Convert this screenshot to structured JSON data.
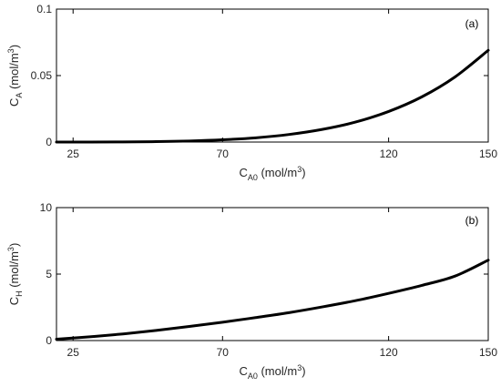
{
  "chart_data": [
    {
      "type": "line",
      "panel_label": "(a)",
      "xlabel": {
        "main": "C",
        "sub": "A0",
        "unit": " (mol/m",
        "sup": "3",
        "close": ")"
      },
      "ylabel": {
        "main": "C",
        "sub": "A",
        "unit": " (mol/m",
        "sup": "3",
        "close": ")"
      },
      "xlim": [
        20,
        150
      ],
      "ylim": [
        0,
        0.1
      ],
      "xticks": [
        25,
        70,
        120,
        150
      ],
      "xtick_labels": [
        "25",
        "70",
        "120",
        "150"
      ],
      "yticks": [
        0,
        0.05,
        0.1
      ],
      "ytick_labels": [
        "0",
        "0.05",
        "0.1"
      ],
      "grid": false,
      "series": [
        {
          "x": [
            20,
            30,
            40,
            50,
            60,
            70,
            80,
            90,
            100,
            110,
            120,
            130,
            140,
            150
          ],
          "y": [
            0.0,
            0.0,
            0.0001,
            0.0003,
            0.0008,
            0.0017,
            0.0032,
            0.0057,
            0.0095,
            0.015,
            0.023,
            0.034,
            0.049,
            0.069
          ]
        }
      ]
    },
    {
      "type": "line",
      "panel_label": "(b)",
      "xlabel": {
        "main": "C",
        "sub": "A0",
        "unit": " (mol/m",
        "sup": "3",
        "close": ")"
      },
      "ylabel": {
        "main": "C",
        "sub": "H",
        "unit": " (mol/m",
        "sup": "3",
        "close": ")"
      },
      "xlim": [
        20,
        150
      ],
      "ylim": [
        0,
        10
      ],
      "xticks": [
        25,
        70,
        120,
        150
      ],
      "xtick_labels": [
        "25",
        "70",
        "120",
        "150"
      ],
      "yticks": [
        0,
        5,
        10
      ],
      "ytick_labels": [
        "0",
        "5",
        "10"
      ],
      "grid": false,
      "series": [
        {
          "x": [
            20,
            30,
            40,
            50,
            60,
            70,
            80,
            90,
            100,
            110,
            120,
            130,
            140,
            150
          ],
          "y": [
            0.1,
            0.28,
            0.5,
            0.76,
            1.06,
            1.38,
            1.73,
            2.1,
            2.53,
            3.0,
            3.55,
            4.15,
            4.85,
            6.05
          ]
        }
      ]
    }
  ]
}
